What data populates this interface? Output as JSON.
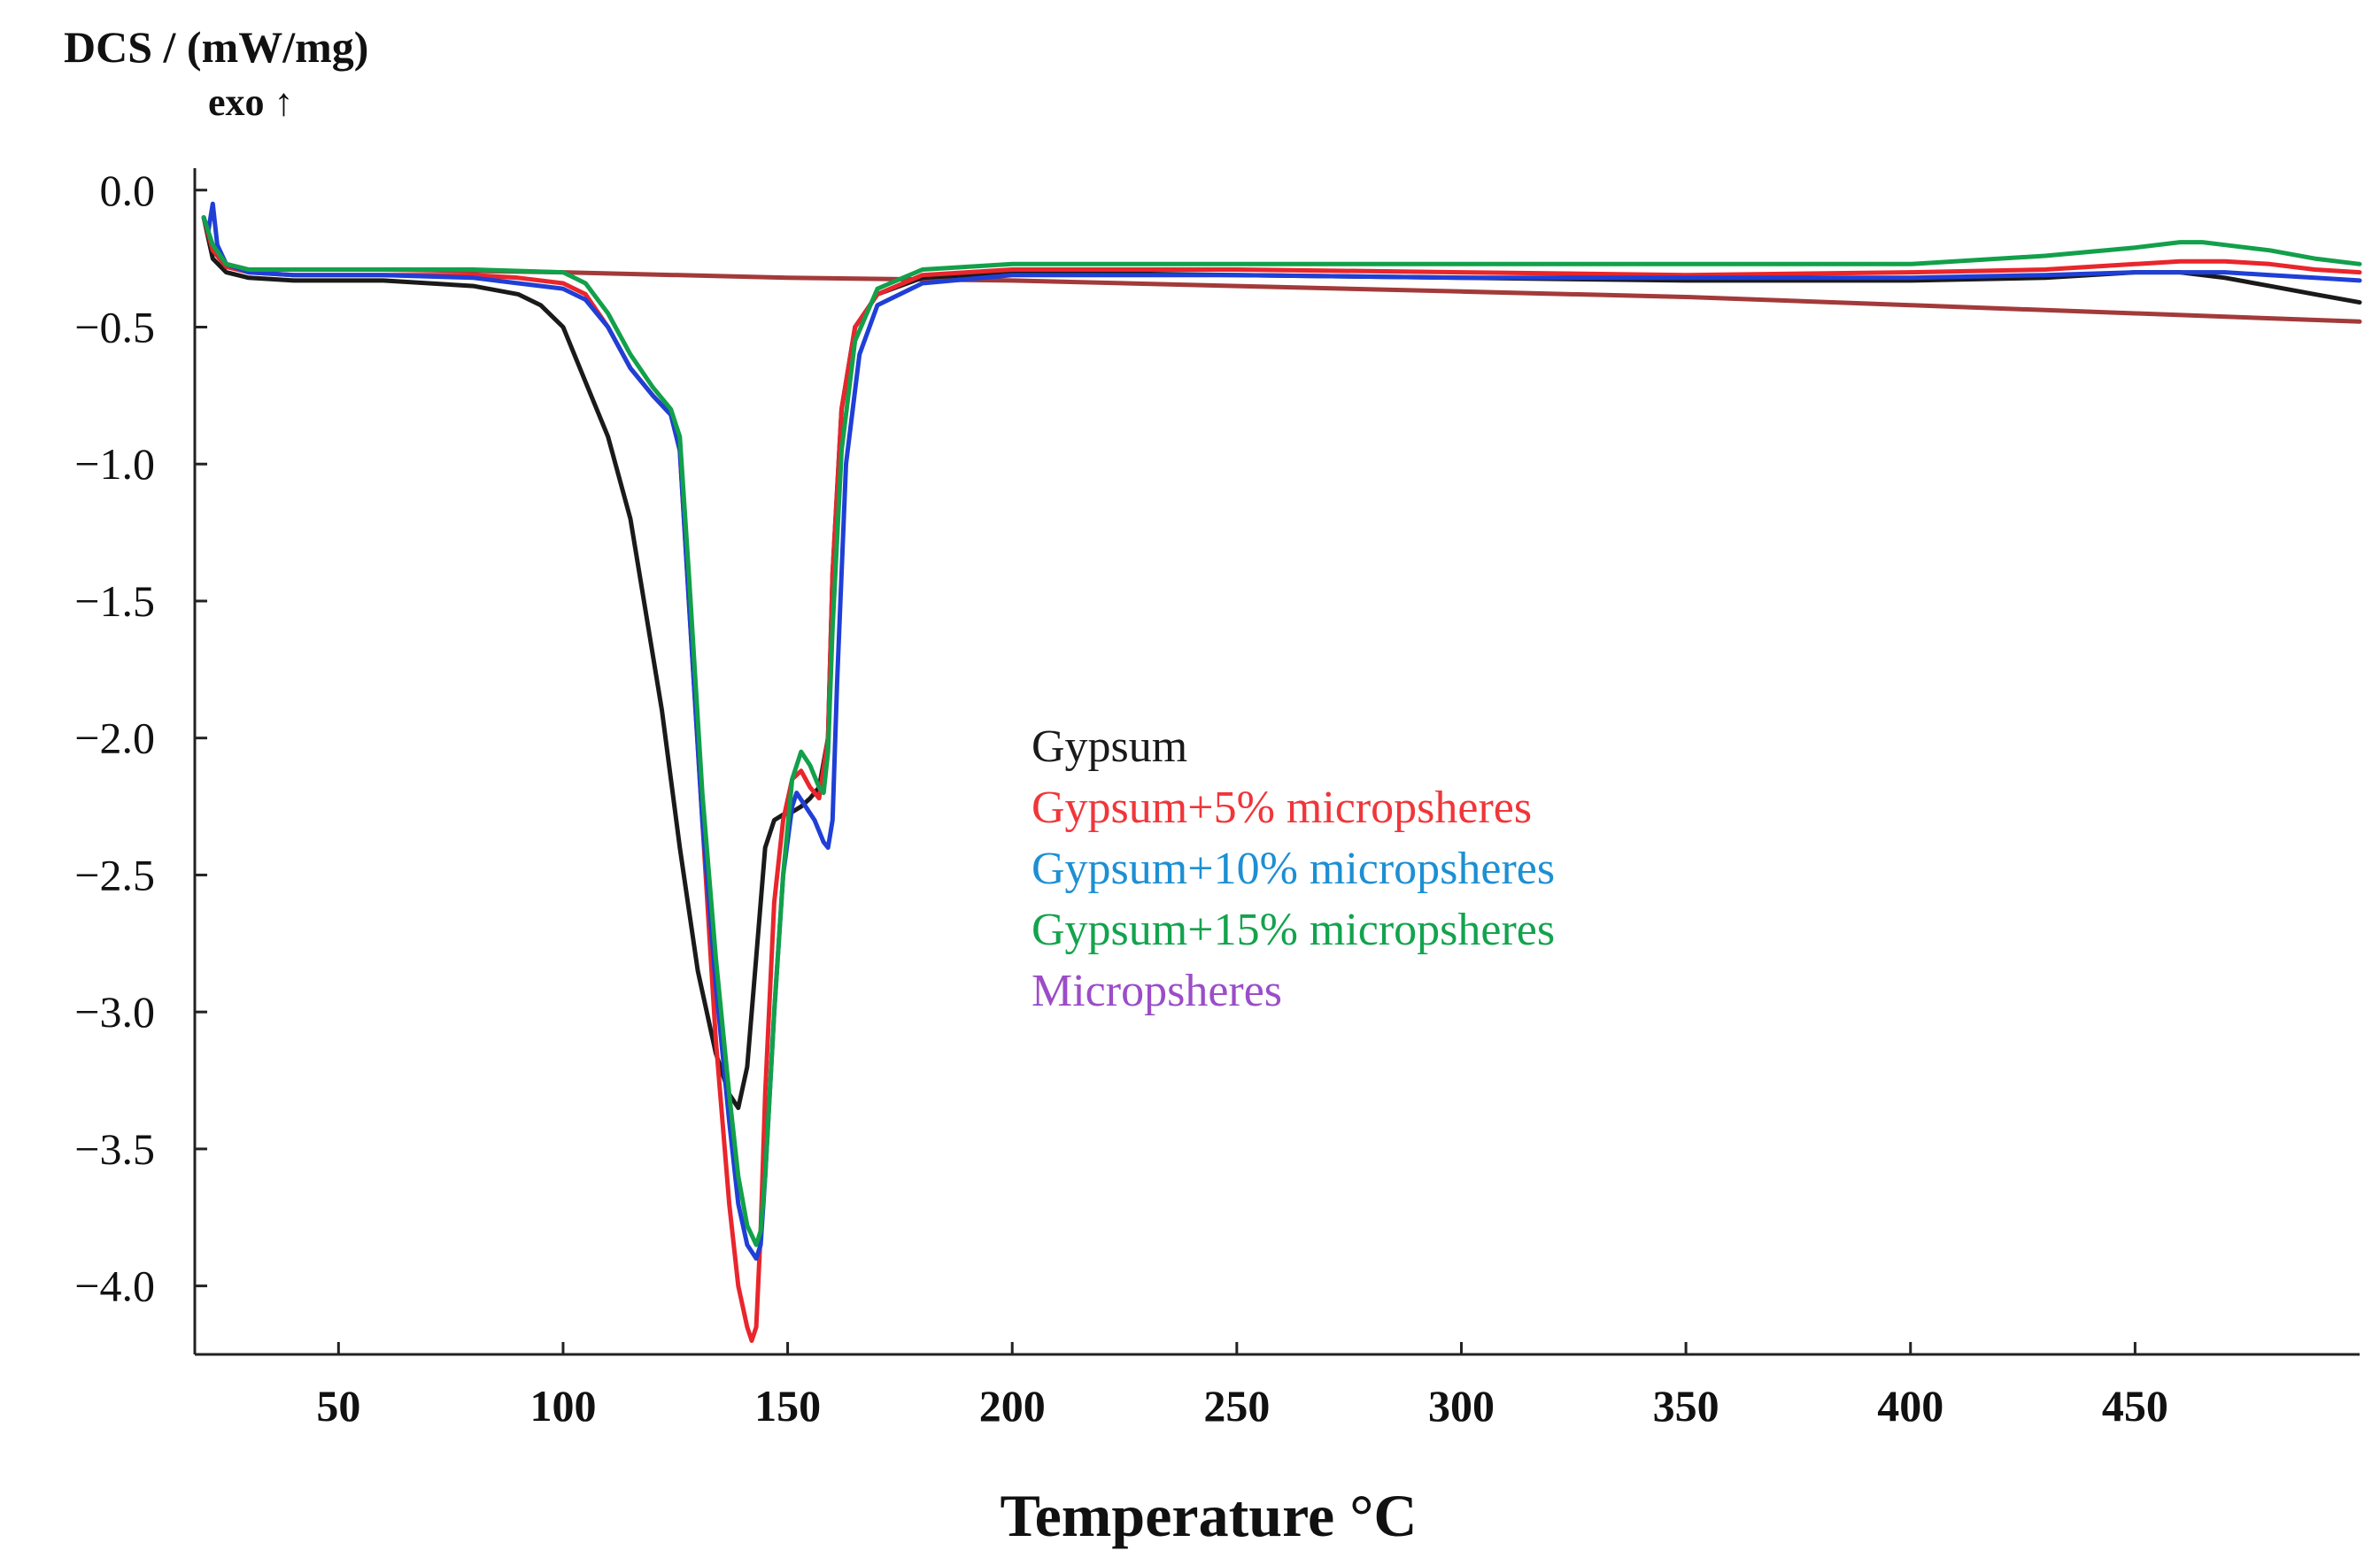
{
  "chart_data": {
    "type": "line",
    "title": "",
    "ylabel": "DCS / (mW/mg)",
    "ylabel_note": "exo ↑",
    "xlabel": "Temperature °C",
    "xlim": [
      18,
      500
    ],
    "ylim": [
      -4.25,
      0.08
    ],
    "x_ticks": [
      50,
      100,
      150,
      200,
      250,
      300,
      350,
      400,
      450
    ],
    "x_tick_labels": [
      "50",
      "100",
      "150",
      "200",
      "250",
      "300",
      "350",
      "400",
      "450"
    ],
    "y_ticks": [
      0.0,
      -0.5,
      -1.0,
      -1.5,
      -2.0,
      -2.5,
      -3.0,
      -3.5,
      -4.0
    ],
    "y_tick_labels": [
      "0.0",
      "−0.5",
      "−1.0",
      "−1.5",
      "−2.0",
      "−2.5",
      "−3.0",
      "−3.5",
      "−4.0"
    ],
    "grid": false,
    "legend_position": "center",
    "series": [
      {
        "name": "Gypsum",
        "color": "#1a1a1a",
        "x": [
          20,
          22,
          25,
          30,
          40,
          60,
          80,
          90,
          95,
          100,
          105,
          110,
          115,
          118,
          122,
          126,
          130,
          134,
          137,
          139,
          141,
          143,
          145,
          147,
          149,
          151,
          153,
          155,
          157,
          159,
          160,
          162,
          165,
          170,
          180,
          200,
          250,
          300,
          350,
          400,
          430,
          450,
          460,
          470,
          480,
          490,
          500
        ],
        "y": [
          -0.1,
          -0.25,
          -0.3,
          -0.32,
          -0.33,
          -0.33,
          -0.35,
          -0.38,
          -0.42,
          -0.5,
          -0.7,
          -0.9,
          -1.2,
          -1.5,
          -1.9,
          -2.4,
          -2.85,
          -3.15,
          -3.3,
          -3.35,
          -3.2,
          -2.8,
          -2.4,
          -2.3,
          -2.28,
          -2.27,
          -2.25,
          -2.22,
          -2.18,
          -2.0,
          -1.4,
          -0.8,
          -0.5,
          -0.38,
          -0.32,
          -0.3,
          -0.31,
          -0.32,
          -0.33,
          -0.33,
          -0.32,
          -0.3,
          -0.3,
          -0.32,
          -0.35,
          -0.38,
          -0.41
        ]
      },
      {
        "name": "Gypsum+5% micropsheres",
        "color": "#e8262c",
        "x": [
          20,
          22,
          25,
          30,
          40,
          60,
          80,
          90,
          100,
          105,
          110,
          115,
          120,
          124,
          126,
          128,
          131,
          134,
          137,
          139,
          141,
          142,
          143,
          144,
          145,
          147,
          149,
          151,
          153,
          155,
          157,
          159,
          160,
          162,
          165,
          170,
          180,
          200,
          250,
          300,
          350,
          400,
          430,
          450,
          460,
          470,
          480,
          490,
          500
        ],
        "y": [
          -0.1,
          -0.22,
          -0.28,
          -0.3,
          -0.31,
          -0.31,
          -0.31,
          -0.32,
          -0.34,
          -0.38,
          -0.5,
          -0.65,
          -0.75,
          -0.82,
          -0.95,
          -1.5,
          -2.3,
          -3.1,
          -3.7,
          -4.0,
          -4.15,
          -4.2,
          -4.15,
          -3.8,
          -3.3,
          -2.6,
          -2.3,
          -2.15,
          -2.12,
          -2.18,
          -2.22,
          -2.0,
          -1.4,
          -0.8,
          -0.5,
          -0.38,
          -0.31,
          -0.29,
          -0.29,
          -0.3,
          -0.31,
          -0.3,
          -0.29,
          -0.27,
          -0.26,
          -0.26,
          -0.27,
          -0.29,
          -0.3
        ]
      },
      {
        "name": "Gypsum+10% micropsheres",
        "color": "#1f3fd6",
        "x": [
          20,
          21,
          22,
          23,
          25,
          30,
          40,
          60,
          80,
          90,
          100,
          105,
          110,
          115,
          120,
          124,
          126,
          128,
          131,
          134,
          137,
          139,
          141,
          143,
          144,
          145,
          147,
          149,
          151,
          152,
          154,
          156,
          158,
          159,
          160,
          161,
          163,
          166,
          170,
          180,
          200,
          250,
          300,
          350,
          400,
          430,
          450,
          460,
          470,
          480,
          490,
          500
        ],
        "y": [
          -0.1,
          -0.15,
          -0.05,
          -0.2,
          -0.27,
          -0.3,
          -0.31,
          -0.31,
          -0.32,
          -0.34,
          -0.36,
          -0.4,
          -0.5,
          -0.65,
          -0.75,
          -0.82,
          -0.95,
          -1.5,
          -2.3,
          -2.9,
          -3.4,
          -3.7,
          -3.85,
          -3.9,
          -3.85,
          -3.6,
          -3.0,
          -2.5,
          -2.25,
          -2.2,
          -2.25,
          -2.3,
          -2.38,
          -2.4,
          -2.3,
          -1.8,
          -1.0,
          -0.6,
          -0.42,
          -0.34,
          -0.31,
          -0.31,
          -0.32,
          -0.32,
          -0.32,
          -0.31,
          -0.3,
          -0.3,
          -0.3,
          -0.31,
          -0.32,
          -0.33
        ]
      },
      {
        "name": "Gypsum+15% micropsheres",
        "color": "#12a04a",
        "x": [
          20,
          22,
          25,
          30,
          40,
          60,
          80,
          100,
          105,
          110,
          115,
          120,
          124,
          126,
          128,
          131,
          134,
          137,
          139,
          141,
          143,
          144,
          145,
          147,
          149,
          151,
          153,
          155,
          157,
          158,
          159,
          160,
          162,
          165,
          170,
          180,
          200,
          250,
          300,
          350,
          400,
          430,
          450,
          460,
          465,
          470,
          480,
          490,
          500
        ],
        "y": [
          -0.1,
          -0.2,
          -0.27,
          -0.29,
          -0.29,
          -0.29,
          -0.29,
          -0.3,
          -0.34,
          -0.45,
          -0.6,
          -0.72,
          -0.8,
          -0.9,
          -1.4,
          -2.2,
          -2.8,
          -3.3,
          -3.6,
          -3.78,
          -3.85,
          -3.8,
          -3.6,
          -3.0,
          -2.5,
          -2.15,
          -2.05,
          -2.1,
          -2.18,
          -2.2,
          -2.05,
          -1.6,
          -0.95,
          -0.55,
          -0.36,
          -0.29,
          -0.27,
          -0.27,
          -0.27,
          -0.27,
          -0.27,
          -0.24,
          -0.21,
          -0.19,
          -0.19,
          -0.2,
          -0.22,
          -0.25,
          -0.27
        ]
      },
      {
        "name": "Micropsheres",
        "color": "#a33a3a",
        "x": [
          20,
          22,
          25,
          30,
          40,
          60,
          100,
          150,
          200,
          250,
          300,
          350,
          400,
          450,
          500
        ],
        "y": [
          -0.1,
          -0.22,
          -0.27,
          -0.29,
          -0.29,
          -0.29,
          -0.3,
          -0.32,
          -0.33,
          -0.35,
          -0.37,
          -0.39,
          -0.42,
          -0.45,
          -0.48
        ]
      }
    ],
    "legend": [
      {
        "label": "Gypsum",
        "color": "#1a1a1a"
      },
      {
        "label": "Gypsum+5% micropsheres",
        "color": "#f0363a"
      },
      {
        "label": "Gypsum+10% micropsheres",
        "color": "#1d8fd3"
      },
      {
        "label": "Gypsum+15% micropsheres",
        "color": "#13a34d"
      },
      {
        "label": "Micropsheres",
        "color": "#9b4dc8"
      }
    ]
  }
}
